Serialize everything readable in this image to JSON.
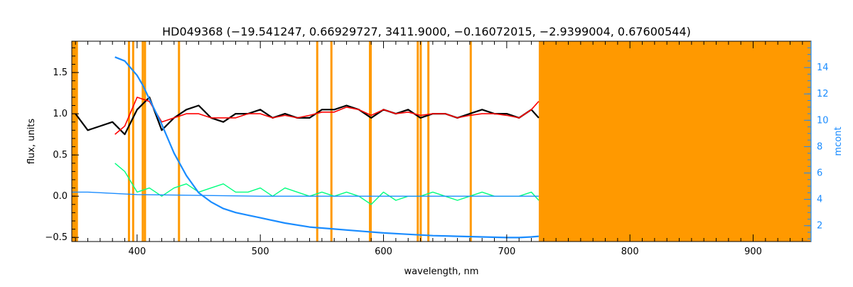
{
  "chart_data": {
    "type": "line",
    "title": "HD049368    (−19.541247, 0.66929727, 3411.9000, −0.16072015, −2.9399004, 0.67600544)",
    "xlabel": "wavelength, nm",
    "ylabel_left": "flux, units",
    "ylabel_right": "mcont",
    "xlim": [
      347,
      947
    ],
    "ylim_left": [
      -0.55,
      1.88
    ],
    "ylim_right": [
      0.8,
      16.0
    ],
    "x_ticks": [
      "400",
      "500",
      "600",
      "700",
      "800",
      "900"
    ],
    "y_ticks_left": [
      "−0.5",
      "0.0",
      "0.5",
      "1.0",
      "1.5"
    ],
    "y_ticks_right": [
      "2",
      "4",
      "6",
      "8",
      "10",
      "12",
      "14"
    ],
    "colors": {
      "observed": "#000000",
      "model": "#ff0000",
      "residual": "#00ff7f",
      "continuum": "#1a8cff",
      "mask": "#ff9900",
      "axis_right": "#1a8cff"
    },
    "masked_region": [
      726,
      947
    ],
    "masked_edge": [
      347,
      352
    ],
    "masked_lines": [
      393.4,
      396.8,
      404.6,
      406.4,
      434.0,
      546.2,
      557.7,
      589.0,
      589.6,
      627.8,
      630.2,
      636.4,
      670.8
    ],
    "series": [
      {
        "name": "observed",
        "axis": "left",
        "x": [
          350,
          360,
          370,
          380,
          390,
          400,
          410,
          420,
          430,
          440,
          450,
          460,
          470,
          480,
          490,
          500,
          510,
          520,
          530,
          540,
          550,
          560,
          570,
          580,
          590,
          600,
          610,
          620,
          630,
          640,
          650,
          660,
          670,
          680,
          690,
          700,
          710,
          720,
          726
        ],
        "y": [
          1.0,
          0.8,
          0.85,
          0.9,
          0.75,
          1.05,
          1.2,
          0.8,
          0.95,
          1.05,
          1.1,
          0.95,
          0.9,
          1.0,
          1.0,
          1.05,
          0.95,
          1.0,
          0.95,
          0.95,
          1.05,
          1.05,
          1.1,
          1.05,
          0.95,
          1.05,
          1.0,
          1.05,
          0.95,
          1.0,
          1.0,
          0.95,
          1.0,
          1.05,
          1.0,
          1.0,
          0.95,
          1.05,
          0.95
        ]
      },
      {
        "name": "model",
        "axis": "left",
        "x": [
          382,
          390,
          400,
          410,
          420,
          430,
          440,
          450,
          460,
          470,
          480,
          490,
          500,
          510,
          520,
          530,
          540,
          550,
          560,
          570,
          580,
          590,
          600,
          610,
          620,
          630,
          640,
          650,
          660,
          670,
          680,
          690,
          700,
          710,
          720,
          726
        ],
        "y": [
          0.75,
          0.85,
          1.2,
          1.15,
          0.9,
          0.95,
          1.0,
          1.0,
          0.95,
          0.95,
          0.95,
          1.0,
          1.0,
          0.95,
          0.98,
          0.95,
          0.98,
          1.02,
          1.02,
          1.08,
          1.05,
          0.98,
          1.05,
          1.0,
          1.02,
          0.98,
          1.0,
          1.0,
          0.95,
          0.98,
          1.0,
          1.0,
          0.98,
          0.95,
          1.05,
          1.15
        ]
      },
      {
        "name": "residual",
        "axis": "left",
        "x": [
          382,
          390,
          400,
          410,
          420,
          430,
          440,
          450,
          460,
          470,
          480,
          490,
          500,
          510,
          520,
          530,
          540,
          550,
          560,
          570,
          580,
          590,
          600,
          610,
          620,
          630,
          640,
          650,
          660,
          670,
          680,
          690,
          700,
          710,
          720,
          726
        ],
        "y": [
          0.4,
          0.3,
          0.05,
          0.1,
          0.0,
          0.1,
          0.15,
          0.05,
          0.1,
          0.15,
          0.05,
          0.05,
          0.1,
          0.0,
          0.1,
          0.05,
          0.0,
          0.05,
          0.0,
          0.05,
          0.0,
          -0.1,
          0.05,
          -0.05,
          0.0,
          0.0,
          0.05,
          0.0,
          -0.05,
          0.0,
          0.05,
          0.0,
          0.0,
          0.0,
          0.05,
          -0.05
        ]
      },
      {
        "name": "continuum",
        "axis": "right",
        "x": [
          382,
          390,
          400,
          405,
          410,
          420,
          430,
          440,
          450,
          460,
          470,
          480,
          490,
          500,
          520,
          540,
          560,
          580,
          600,
          620,
          640,
          660,
          680,
          700,
          710,
          720,
          726
        ],
        "y": [
          14.8,
          14.5,
          13.4,
          12.6,
          11.6,
          9.7,
          7.5,
          5.8,
          4.5,
          3.8,
          3.3,
          3.0,
          2.8,
          2.6,
          2.2,
          1.9,
          1.75,
          1.6,
          1.45,
          1.35,
          1.25,
          1.2,
          1.15,
          1.1,
          1.1,
          1.15,
          1.2
        ]
      },
      {
        "name": "baseline",
        "axis": "left",
        "x": [
          347,
          360,
          400,
          500,
          600,
          700,
          726
        ],
        "y": [
          0.05,
          0.05,
          0.02,
          0.0,
          0.0,
          0.0,
          0.0
        ]
      }
    ]
  }
}
